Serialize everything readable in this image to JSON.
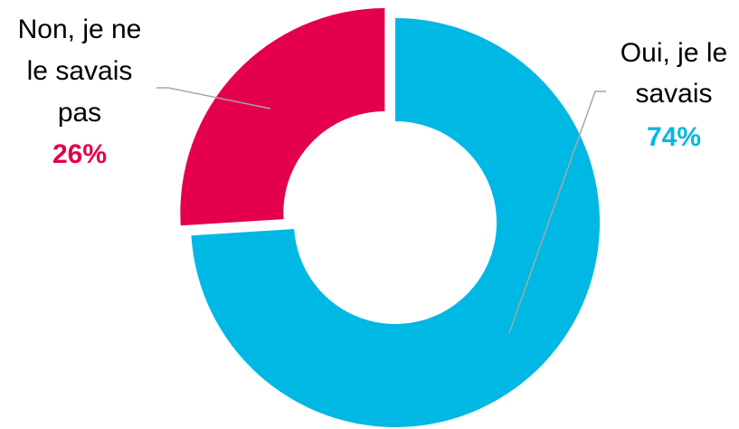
{
  "chart_data": {
    "type": "pie",
    "donut": true,
    "slices": [
      {
        "label_lines": [
          "Oui, je le",
          "savais"
        ],
        "value": 74,
        "value_label": "74%",
        "color": "#00B8E4"
      },
      {
        "label_lines": [
          "Non, je ne",
          "le savais",
          "pas"
        ],
        "value": 26,
        "value_label": "26%",
        "color": "#E4004B"
      }
    ],
    "exploded_slice": "Non, je ne le savais pas",
    "leader_line_color": "#A6A6A6",
    "legend": "none"
  }
}
